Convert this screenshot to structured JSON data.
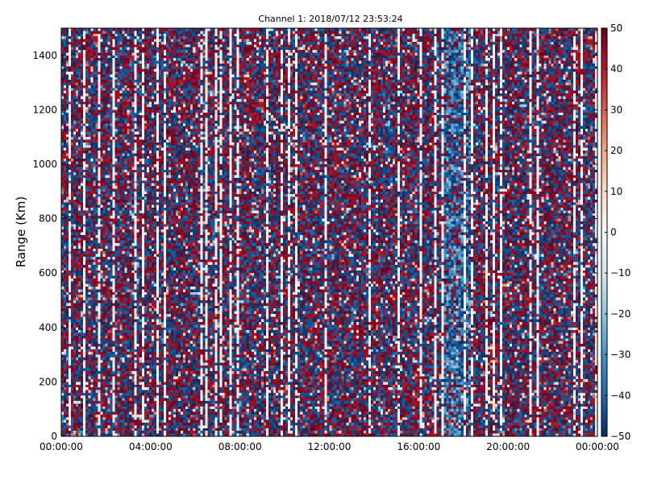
{
  "chart_data": {
    "type": "heatmap",
    "title": "Channel 1: 2018/07/12 23:53:24",
    "xlabel": "",
    "ylabel": "Range (Km)",
    "x_ticks": [
      "00:00:00",
      "04:00:00",
      "08:00:00",
      "12:00:00",
      "16:00:00",
      "20:00:00",
      "00:00:00"
    ],
    "x_range": [
      "00:00:00",
      "24:00:00"
    ],
    "y_ticks": [
      0,
      200,
      400,
      600,
      800,
      1000,
      1200,
      1400
    ],
    "ylim": [
      0,
      1500
    ],
    "colorbar": {
      "range": [
        -50,
        50
      ],
      "ticks": [
        -50,
        -40,
        -30,
        -20,
        -10,
        0,
        10,
        20,
        30,
        40,
        50
      ],
      "colormap": "RdBu_r",
      "colors": [
        "#053061",
        "#2166ac",
        "#4393c3",
        "#92c5de",
        "#d1e5f0",
        "#f7f7f7",
        "#fddbc7",
        "#f4a582",
        "#d6604d",
        "#b2182b",
        "#67001f"
      ]
    },
    "grid": false
  }
}
